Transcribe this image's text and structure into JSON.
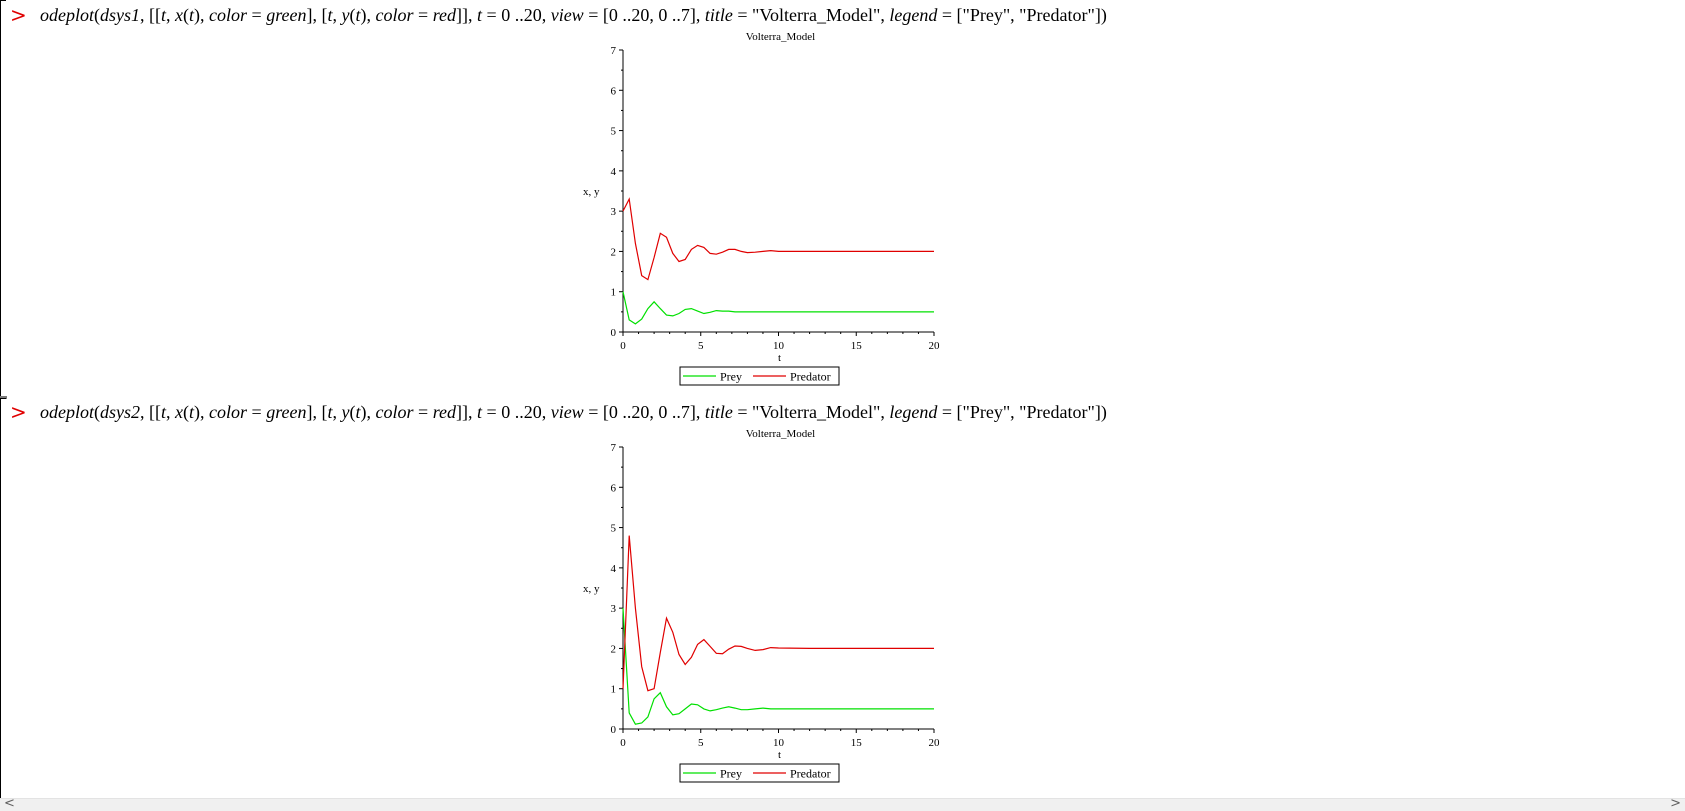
{
  "worksheet": {
    "prompt_symbol": ">",
    "commands": [
      {
        "parts": [
          {
            "t": "odeplot",
            "i": true
          },
          {
            "t": "(",
            "i": false
          },
          {
            "t": "dsys1",
            "i": true
          },
          {
            "t": ", [[",
            "i": false
          },
          {
            "t": "t",
            "i": true
          },
          {
            "t": ", ",
            "i": false
          },
          {
            "t": "x",
            "i": true
          },
          {
            "t": "(",
            "i": false
          },
          {
            "t": "t",
            "i": true
          },
          {
            "t": "), ",
            "i": false
          },
          {
            "t": "color",
            "i": true
          },
          {
            "t": " = ",
            "i": false
          },
          {
            "t": "green",
            "i": true
          },
          {
            "t": "], [",
            "i": false
          },
          {
            "t": "t",
            "i": true
          },
          {
            "t": ", ",
            "i": false
          },
          {
            "t": "y",
            "i": true
          },
          {
            "t": "(",
            "i": false
          },
          {
            "t": "t",
            "i": true
          },
          {
            "t": "), ",
            "i": false
          },
          {
            "t": "color",
            "i": true
          },
          {
            "t": " = ",
            "i": false
          },
          {
            "t": "red",
            "i": true
          },
          {
            "t": "]], ",
            "i": false
          },
          {
            "t": "t",
            "i": true
          },
          {
            "t": " = 0 ..20, ",
            "i": false
          },
          {
            "t": "view",
            "i": true
          },
          {
            "t": " = [0 ..20, 0 ..7], ",
            "i": false
          },
          {
            "t": "title",
            "i": true
          },
          {
            "t": " = \"Volterra_Model\", ",
            "i": false
          },
          {
            "t": "legend",
            "i": true
          },
          {
            "t": " = [\"Prey\", \"Predator\"])",
            "i": false
          }
        ]
      },
      {
        "parts": [
          {
            "t": "odeplot",
            "i": true
          },
          {
            "t": "(",
            "i": false
          },
          {
            "t": "dsys2",
            "i": true
          },
          {
            "t": ", [[",
            "i": false
          },
          {
            "t": "t",
            "i": true
          },
          {
            "t": ", ",
            "i": false
          },
          {
            "t": "x",
            "i": true
          },
          {
            "t": "(",
            "i": false
          },
          {
            "t": "t",
            "i": true
          },
          {
            "t": "), ",
            "i": false
          },
          {
            "t": "color",
            "i": true
          },
          {
            "t": " = ",
            "i": false
          },
          {
            "t": "green",
            "i": true
          },
          {
            "t": "], [",
            "i": false
          },
          {
            "t": "t",
            "i": true
          },
          {
            "t": ", ",
            "i": false
          },
          {
            "t": "y",
            "i": true
          },
          {
            "t": "(",
            "i": false
          },
          {
            "t": "t",
            "i": true
          },
          {
            "t": "), ",
            "i": false
          },
          {
            "t": "color",
            "i": true
          },
          {
            "t": " = ",
            "i": false
          },
          {
            "t": "red",
            "i": true
          },
          {
            "t": "]], ",
            "i": false
          },
          {
            "t": "t",
            "i": true
          },
          {
            "t": " = 0 ..20, ",
            "i": false
          },
          {
            "t": "view",
            "i": true
          },
          {
            "t": " = [0 ..20, 0 ..7], ",
            "i": false
          },
          {
            "t": "title",
            "i": true
          },
          {
            "t": " = \"Volterra_Model\", ",
            "i": false
          },
          {
            "t": "legend",
            "i": true
          },
          {
            "t": " = [\"Prey\", \"Predator\"])",
            "i": false
          }
        ]
      }
    ],
    "scrollbar": {
      "left_arrow": "<",
      "right_arrow": ">"
    },
    "colors": {
      "prompt": "#e00000",
      "prey": "#00e000",
      "predator": "#e00000"
    }
  },
  "chart_data": [
    {
      "type": "line",
      "title": "Volterra_Model",
      "xlabel": "t",
      "ylabel": "x, y",
      "xlim": [
        0,
        20
      ],
      "ylim": [
        0,
        7
      ],
      "x_ticks": [
        "0",
        "5",
        "10",
        "15",
        "20"
      ],
      "y_ticks": [
        "0",
        "1",
        "2",
        "3",
        "4",
        "5",
        "6",
        "7"
      ],
      "grid": false,
      "legend_position": "bottom",
      "series": [
        {
          "name": "Prey",
          "color": "#00e000",
          "x": [
            0,
            0.4,
            0.8,
            1.2,
            1.6,
            2.0,
            2.4,
            2.8,
            3.2,
            3.6,
            4.0,
            4.4,
            4.8,
            5.2,
            5.6,
            6.0,
            6.4,
            6.8,
            7.2,
            7.6,
            8.0,
            9.0,
            10.0,
            12.0,
            15.0,
            20.0
          ],
          "y": [
            1.0,
            0.3,
            0.2,
            0.32,
            0.58,
            0.75,
            0.58,
            0.42,
            0.4,
            0.46,
            0.56,
            0.58,
            0.52,
            0.46,
            0.49,
            0.53,
            0.52,
            0.52,
            0.5,
            0.5,
            0.5,
            0.5,
            0.5,
            0.5,
            0.5,
            0.5
          ]
        },
        {
          "name": "Predator",
          "color": "#e00000",
          "x": [
            0,
            0.4,
            0.8,
            1.2,
            1.6,
            2.0,
            2.4,
            2.8,
            3.2,
            3.6,
            4.0,
            4.4,
            4.8,
            5.2,
            5.6,
            6.0,
            6.4,
            6.8,
            7.2,
            7.6,
            8.0,
            8.5,
            9.0,
            9.5,
            10.0,
            12.0,
            15.0,
            20.0
          ],
          "y": [
            3.0,
            3.3,
            2.2,
            1.4,
            1.3,
            1.85,
            2.45,
            2.35,
            1.95,
            1.75,
            1.8,
            2.05,
            2.15,
            2.1,
            1.95,
            1.93,
            1.98,
            2.05,
            2.05,
            2.0,
            1.97,
            1.98,
            2.0,
            2.02,
            2.0,
            2.0,
            2.0,
            2.0
          ]
        }
      ]
    },
    {
      "type": "line",
      "title": "Volterra_Model",
      "xlabel": "t",
      "ylabel": "x, y",
      "xlim": [
        0,
        20
      ],
      "ylim": [
        0,
        7
      ],
      "x_ticks": [
        "0",
        "5",
        "10",
        "15",
        "20"
      ],
      "y_ticks": [
        "0",
        "1",
        "2",
        "3",
        "4",
        "5",
        "6",
        "7"
      ],
      "grid": false,
      "legend_position": "bottom",
      "series": [
        {
          "name": "Prey",
          "color": "#00e000",
          "x": [
            0,
            0.4,
            0.8,
            1.2,
            1.6,
            2.0,
            2.4,
            2.8,
            3.2,
            3.6,
            4.0,
            4.4,
            4.8,
            5.2,
            5.6,
            6.0,
            6.4,
            6.8,
            7.2,
            7.6,
            8.0,
            8.5,
            9.0,
            9.5,
            10.0,
            12.0,
            15.0,
            20.0
          ],
          "y": [
            3.0,
            0.4,
            0.12,
            0.15,
            0.3,
            0.75,
            0.9,
            0.55,
            0.35,
            0.38,
            0.5,
            0.62,
            0.6,
            0.5,
            0.45,
            0.48,
            0.52,
            0.55,
            0.52,
            0.48,
            0.48,
            0.5,
            0.52,
            0.5,
            0.5,
            0.5,
            0.5,
            0.5
          ]
        },
        {
          "name": "Predator",
          "color": "#e00000",
          "x": [
            0,
            0.4,
            0.8,
            1.2,
            1.6,
            2.0,
            2.4,
            2.8,
            3.2,
            3.6,
            4.0,
            4.4,
            4.8,
            5.2,
            5.6,
            6.0,
            6.4,
            6.8,
            7.2,
            7.6,
            8.0,
            8.5,
            9.0,
            9.5,
            10.0,
            12.0,
            15.0,
            20.0
          ],
          "y": [
            1.0,
            4.8,
            3.0,
            1.55,
            0.95,
            1.0,
            1.9,
            2.75,
            2.4,
            1.85,
            1.6,
            1.78,
            2.1,
            2.22,
            2.05,
            1.88,
            1.87,
            1.98,
            2.06,
            2.05,
            2.0,
            1.95,
            1.97,
            2.02,
            2.01,
            2.0,
            2.0,
            2.0
          ]
        }
      ]
    }
  ]
}
